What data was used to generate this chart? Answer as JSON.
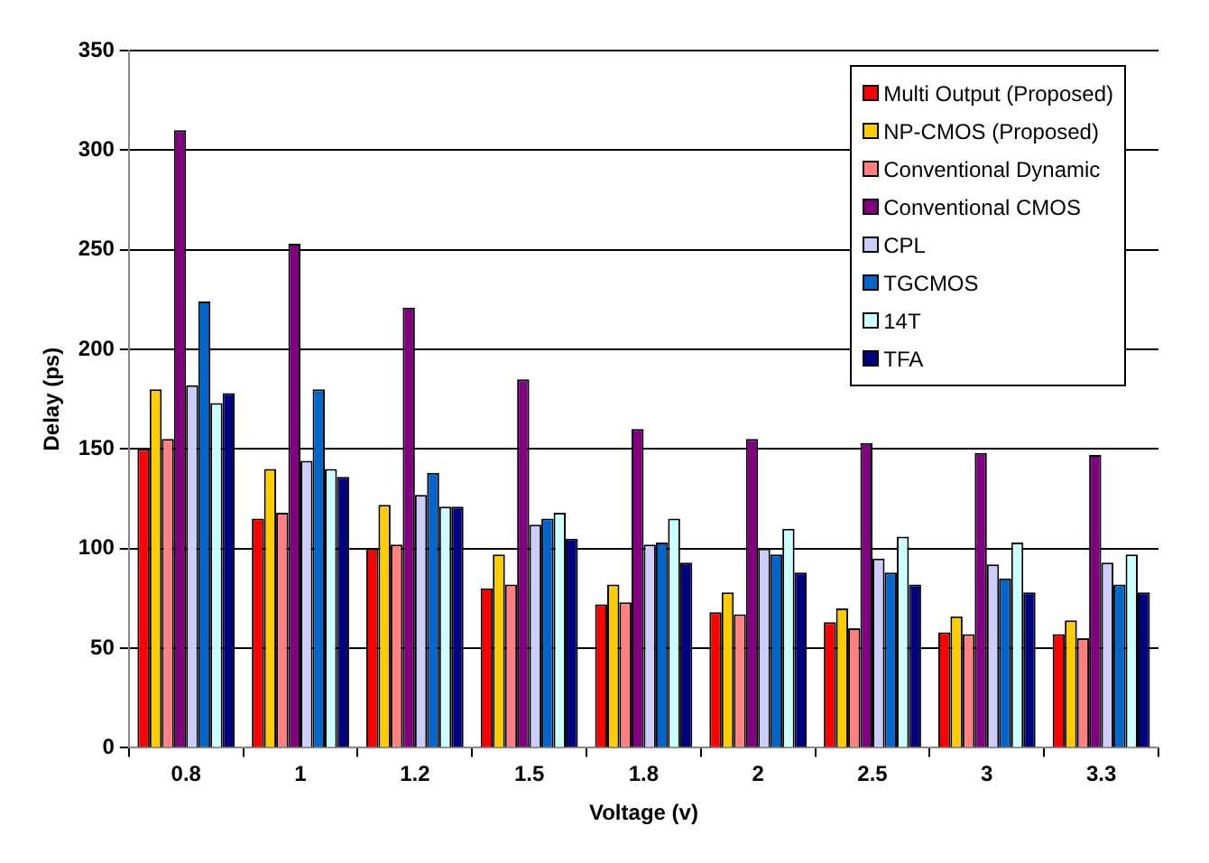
{
  "chart_data": {
    "type": "bar",
    "xlabel": "Voltage (v)",
    "ylabel": "Delay (ps)",
    "categories": [
      "0.8",
      "1",
      "1.2",
      "1.5",
      "1.8",
      "2",
      "2.5",
      "3",
      "3.3"
    ],
    "series": [
      {
        "name": "Multi Output (Proposed)",
        "color": "#ff0000",
        "values": [
          150,
          115,
          100,
          80,
          72,
          68,
          63,
          58,
          57
        ]
      },
      {
        "name": "NP-CMOS (Proposed)",
        "color": "#ffcc00",
        "values": [
          180,
          140,
          122,
          97,
          82,
          78,
          70,
          66,
          64
        ]
      },
      {
        "name": "Conventional Dynamic",
        "color": "#ff8080",
        "values": [
          155,
          118,
          102,
          82,
          73,
          67,
          60,
          57,
          55
        ]
      },
      {
        "name": "Conventional CMOS",
        "color": "#800080",
        "values": [
          310,
          253,
          221,
          185,
          160,
          155,
          153,
          148,
          147
        ]
      },
      {
        "name": "CPL",
        "color": "#ccccff",
        "values": [
          182,
          144,
          127,
          112,
          102,
          100,
          95,
          92,
          93
        ]
      },
      {
        "name": "TGCMOS",
        "color": "#0066cc",
        "values": [
          224,
          180,
          138,
          115,
          103,
          97,
          88,
          85,
          82
        ]
      },
      {
        "name": "14T",
        "color": "#ccffff",
        "values": [
          173,
          140,
          121,
          118,
          115,
          110,
          106,
          103,
          97
        ]
      },
      {
        "name": "TFA",
        "color": "#000080",
        "values": [
          178,
          136,
          121,
          105,
          93,
          88,
          82,
          78,
          78
        ]
      }
    ],
    "ylim": [
      0,
      350
    ],
    "yticks": [
      0,
      50,
      100,
      150,
      200,
      250,
      300,
      350
    ],
    "grid": "y",
    "legend": "top right"
  }
}
